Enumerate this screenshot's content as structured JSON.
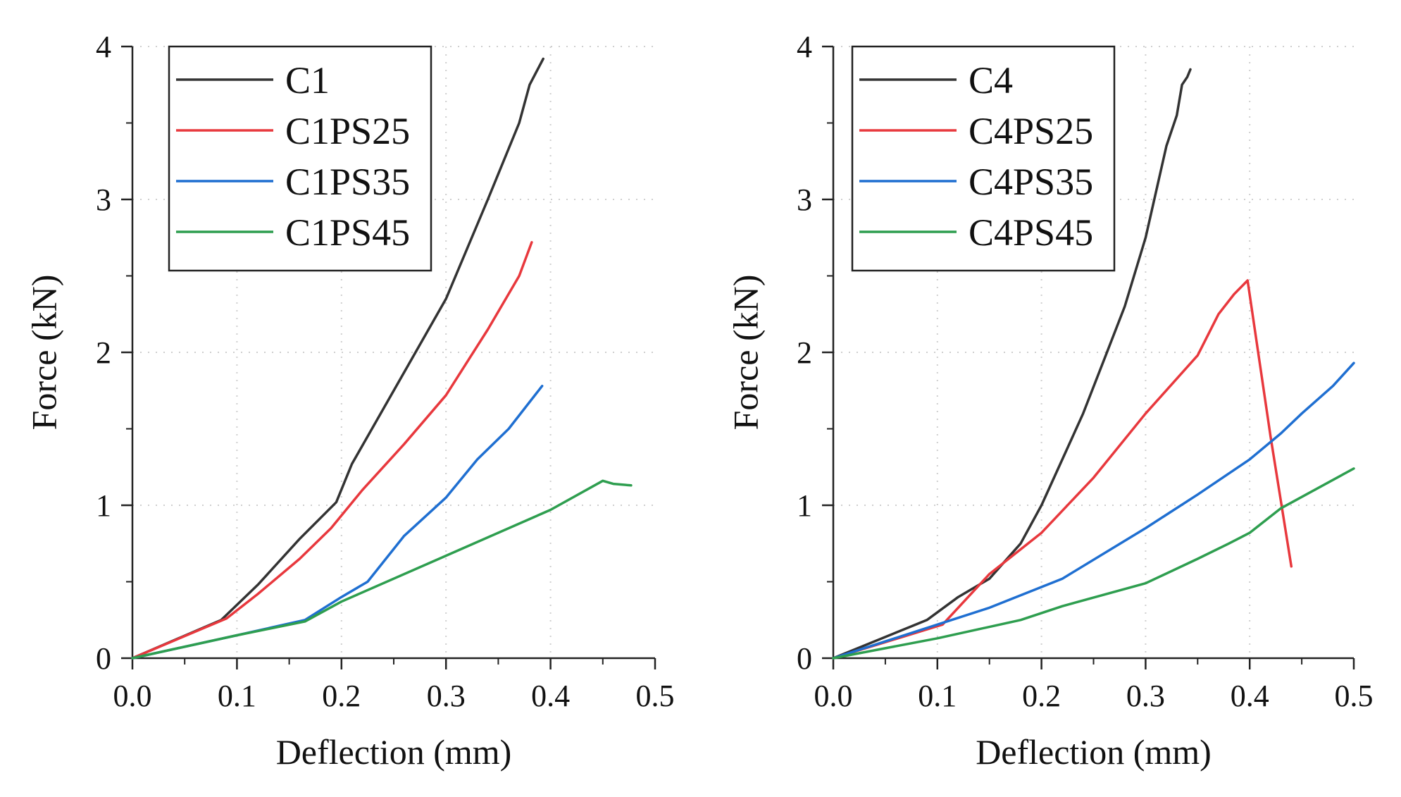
{
  "chart_data": [
    {
      "type": "line",
      "title": "",
      "xlabel": "Deflection (mm)",
      "ylabel": "Force (kN)",
      "xlim": [
        0,
        0.5
      ],
      "ylim": [
        0,
        4
      ],
      "xticks": [
        "0.0",
        "0.1",
        "0.2",
        "0.3",
        "0.4",
        "0.5"
      ],
      "yticks": [
        "0",
        "1",
        "2",
        "3",
        "4"
      ],
      "grid": true,
      "legend_position": "top-left",
      "series": [
        {
          "name": "C1",
          "color": "#333333",
          "x": [
            0,
            0.085,
            0.12,
            0.16,
            0.195,
            0.21,
            0.25,
            0.3,
            0.34,
            0.37,
            0.38,
            0.393
          ],
          "y": [
            0,
            0.25,
            0.48,
            0.78,
            1.02,
            1.27,
            1.75,
            2.35,
            3.0,
            3.5,
            3.75,
            3.92
          ]
        },
        {
          "name": "C1PS25",
          "color": "#e8383d",
          "x": [
            0,
            0.09,
            0.12,
            0.16,
            0.19,
            0.22,
            0.26,
            0.3,
            0.34,
            0.37,
            0.382
          ],
          "y": [
            0,
            0.26,
            0.42,
            0.65,
            0.85,
            1.1,
            1.4,
            1.72,
            2.15,
            2.5,
            2.72
          ]
        },
        {
          "name": "C1PS35",
          "color": "#1f6fd1",
          "x": [
            0,
            0.1,
            0.165,
            0.2,
            0.225,
            0.26,
            0.3,
            0.33,
            0.36,
            0.392
          ],
          "y": [
            0,
            0.15,
            0.25,
            0.4,
            0.5,
            0.8,
            1.05,
            1.3,
            1.5,
            1.78
          ]
        },
        {
          "name": "C1PS45",
          "color": "#2e9e4f",
          "x": [
            0,
            0.1,
            0.165,
            0.2,
            0.3,
            0.4,
            0.45,
            0.46,
            0.477
          ],
          "y": [
            0,
            0.15,
            0.24,
            0.37,
            0.67,
            0.97,
            1.16,
            1.14,
            1.13
          ]
        }
      ]
    },
    {
      "type": "line",
      "title": "",
      "xlabel": "Deflection (mm)",
      "ylabel": "Force (kN)",
      "xlim": [
        0,
        0.5
      ],
      "ylim": [
        0,
        4
      ],
      "xticks": [
        "0.0",
        "0.1",
        "0.2",
        "0.3",
        "0.4",
        "0.5"
      ],
      "yticks": [
        "0",
        "1",
        "2",
        "3",
        "4"
      ],
      "grid": true,
      "legend_position": "top-left",
      "series": [
        {
          "name": "C4",
          "color": "#333333",
          "x": [
            0,
            0.09,
            0.12,
            0.15,
            0.18,
            0.2,
            0.22,
            0.24,
            0.26,
            0.28,
            0.3,
            0.31,
            0.32,
            0.33,
            0.335,
            0.34,
            0.343
          ],
          "y": [
            0,
            0.25,
            0.4,
            0.52,
            0.75,
            1.0,
            1.3,
            1.6,
            1.95,
            2.3,
            2.75,
            3.05,
            3.35,
            3.55,
            3.75,
            3.8,
            3.85
          ]
        },
        {
          "name": "C4PS25",
          "color": "#e8383d",
          "x": [
            0,
            0.105,
            0.15,
            0.2,
            0.25,
            0.3,
            0.35,
            0.37,
            0.385,
            0.398,
            0.42,
            0.44
          ],
          "y": [
            0,
            0.22,
            0.55,
            0.82,
            1.18,
            1.6,
            1.98,
            2.25,
            2.38,
            2.47,
            1.45,
            0.6
          ]
        },
        {
          "name": "C4PS35",
          "color": "#1f6fd1",
          "x": [
            0,
            0.1,
            0.15,
            0.22,
            0.3,
            0.35,
            0.4,
            0.43,
            0.45,
            0.48,
            0.5
          ],
          "y": [
            0,
            0.22,
            0.33,
            0.52,
            0.85,
            1.07,
            1.3,
            1.47,
            1.6,
            1.78,
            1.93
          ]
        },
        {
          "name": "C4PS45",
          "color": "#2e9e4f",
          "x": [
            0,
            0.1,
            0.18,
            0.22,
            0.3,
            0.35,
            0.38,
            0.4,
            0.43,
            0.5
          ],
          "y": [
            0,
            0.13,
            0.25,
            0.34,
            0.49,
            0.65,
            0.75,
            0.82,
            0.98,
            1.24
          ]
        }
      ]
    }
  ]
}
